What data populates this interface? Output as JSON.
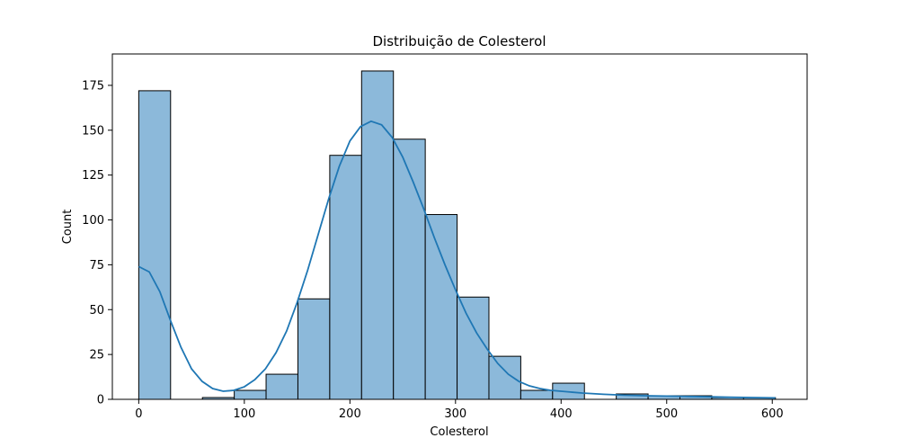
{
  "chart_data": {
    "type": "bar",
    "title": "Distribuição de Colesterol",
    "xlabel": "Colesterol",
    "ylabel": "Count",
    "xlim": [
      -25,
      633
    ],
    "ylim": [
      0,
      192.5
    ],
    "bin_edges": [
      0,
      30.15,
      60.3,
      90.45,
      120.6,
      150.75,
      180.9,
      211.05,
      241.2,
      271.35,
      301.5,
      331.65,
      361.8,
      391.95,
      422.1,
      452.25,
      482.4,
      512.55,
      542.7,
      572.85,
      603
    ],
    "counts": [
      172,
      0,
      1,
      5,
      14,
      56,
      136,
      183,
      145,
      103,
      57,
      24,
      5,
      9,
      0,
      3,
      2,
      2,
      1,
      1
    ],
    "x_ticks": [
      0,
      100,
      200,
      300,
      400,
      500,
      600
    ],
    "y_ticks": [
      0,
      25,
      50,
      75,
      100,
      125,
      150,
      175
    ],
    "kde": {
      "x": [
        0,
        10,
        20,
        30,
        40,
        50,
        60,
        70,
        80,
        90,
        100,
        110,
        120,
        130,
        140,
        150,
        160,
        170,
        180,
        190,
        200,
        210,
        220,
        230,
        240,
        250,
        260,
        270,
        280,
        290,
        300,
        310,
        320,
        330,
        340,
        350,
        360,
        370,
        380,
        390,
        400,
        420,
        440,
        460,
        480,
        500,
        520,
        540,
        560,
        580,
        603
      ],
      "y": [
        74,
        71,
        60,
        44,
        29,
        17,
        10,
        6,
        4.5,
        5,
        7,
        11,
        17,
        26,
        38,
        54,
        72,
        92,
        112,
        130,
        144,
        152,
        155,
        153,
        146,
        135,
        121,
        106,
        90,
        75,
        61,
        48,
        37,
        28,
        20,
        14,
        10,
        7.5,
        6,
        5,
        4.5,
        3.5,
        2.8,
        2.3,
        2,
        1.8,
        1.6,
        1.4,
        1.2,
        1,
        0.8
      ]
    },
    "grid": false,
    "colors": {
      "bar_fill": "#8cb9da",
      "bar_edge": "#000000",
      "kde_line": "#1f77b4"
    }
  }
}
